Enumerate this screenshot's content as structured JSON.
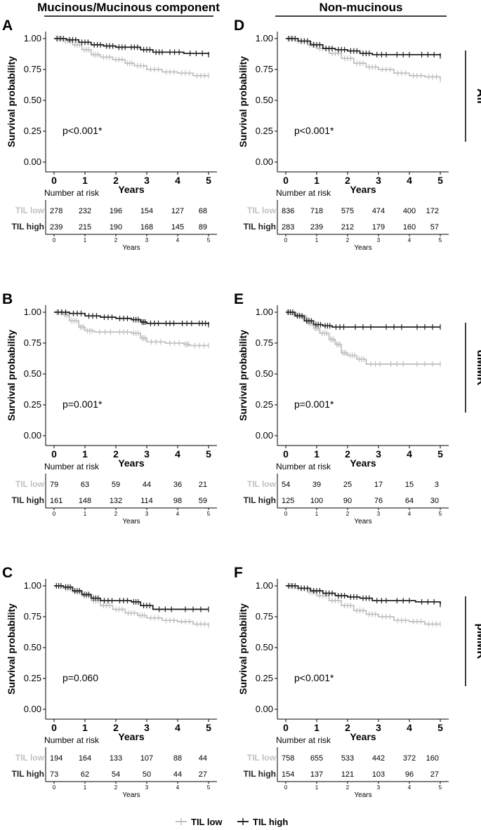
{
  "chart_data": {
    "type": "line",
    "subtype": "kaplan-meier",
    "column_titles": [
      "Mucinous/Mucinous component",
      "Non-mucinous"
    ],
    "row_labels": [
      "All",
      "dMMR",
      "pMMR"
    ],
    "series_names": [
      "TIL low",
      "TIL high"
    ],
    "series_colors": {
      "TIL low": "#c0c0c0",
      "TIL high": "#222222"
    },
    "ylabel": "Survival probability",
    "xlabel": "Years",
    "yticks": [
      "0.00",
      "0.25",
      "0.50",
      "0.75",
      "1.00"
    ],
    "xticks": [
      "0",
      "1",
      "2",
      "3",
      "4",
      "5"
    ],
    "xlim": [
      0,
      5
    ],
    "ylim": [
      0,
      1
    ],
    "risk_title": "Number at risk",
    "risk_xlabel": "Years",
    "legend": [
      "TIL low",
      "TIL high"
    ],
    "legend_position": "bottom",
    "panels": [
      {
        "label": "A",
        "pvalue": "p<0.001*",
        "risk": {
          "TIL low": [
            "278",
            "232",
            "196",
            "154",
            "127",
            "68"
          ],
          "TIL high": [
            "239",
            "215",
            "190",
            "168",
            "145",
            "89"
          ]
        },
        "curves": {
          "TIL low": [
            [
              0,
              1.0
            ],
            [
              0.3,
              0.98
            ],
            [
              0.6,
              0.95
            ],
            [
              0.9,
              0.91
            ],
            [
              1.2,
              0.87
            ],
            [
              1.5,
              0.85
            ],
            [
              1.9,
              0.83
            ],
            [
              2.3,
              0.8
            ],
            [
              2.6,
              0.78
            ],
            [
              3.0,
              0.75
            ],
            [
              3.5,
              0.73
            ],
            [
              4.0,
              0.72
            ],
            [
              4.5,
              0.7
            ],
            [
              5.0,
              0.7
            ]
          ],
          "TIL high": [
            [
              0,
              1.0
            ],
            [
              0.4,
              0.99
            ],
            [
              0.8,
              0.97
            ],
            [
              1.2,
              0.95
            ],
            [
              1.6,
              0.94
            ],
            [
              2.0,
              0.93
            ],
            [
              2.4,
              0.93
            ],
            [
              2.8,
              0.91
            ],
            [
              3.2,
              0.89
            ],
            [
              3.6,
              0.89
            ],
            [
              4.2,
              0.88
            ],
            [
              5.0,
              0.87
            ]
          ]
        }
      },
      {
        "label": "D",
        "pvalue": "p<0.001*",
        "risk": {
          "TIL low": [
            "836",
            "718",
            "575",
            "474",
            "400",
            "172"
          ],
          "TIL high": [
            "283",
            "239",
            "212",
            "179",
            "160",
            "57"
          ]
        },
        "curves": {
          "TIL low": [
            [
              0,
              1.0
            ],
            [
              0.3,
              0.98
            ],
            [
              0.7,
              0.95
            ],
            [
              1.0,
              0.92
            ],
            [
              1.4,
              0.88
            ],
            [
              1.8,
              0.84
            ],
            [
              2.2,
              0.8
            ],
            [
              2.6,
              0.77
            ],
            [
              3.0,
              0.75
            ],
            [
              3.5,
              0.72
            ],
            [
              4.0,
              0.7
            ],
            [
              4.5,
              0.69
            ],
            [
              5.0,
              0.67
            ]
          ],
          "TIL high": [
            [
              0,
              1.0
            ],
            [
              0.4,
              0.98
            ],
            [
              0.8,
              0.95
            ],
            [
              1.2,
              0.92
            ],
            [
              1.6,
              0.91
            ],
            [
              2.0,
              0.9
            ],
            [
              2.4,
              0.88
            ],
            [
              2.8,
              0.87
            ],
            [
              3.4,
              0.87
            ],
            [
              4.2,
              0.87
            ],
            [
              5.0,
              0.86
            ]
          ]
        }
      },
      {
        "label": "B",
        "pvalue": "p=0.001*",
        "risk": {
          "TIL low": [
            "79",
            "63",
            "59",
            "44",
            "36",
            "21"
          ],
          "TIL high": [
            "161",
            "148",
            "132",
            "114",
            "98",
            "59"
          ]
        },
        "curves": {
          "TIL low": [
            [
              0,
              1.0
            ],
            [
              0.3,
              0.98
            ],
            [
              0.5,
              0.93
            ],
            [
              0.8,
              0.88
            ],
            [
              1.0,
              0.85
            ],
            [
              1.3,
              0.84
            ],
            [
              2.0,
              0.84
            ],
            [
              2.5,
              0.83
            ],
            [
              2.8,
              0.79
            ],
            [
              3.0,
              0.76
            ],
            [
              3.6,
              0.75
            ],
            [
              4.2,
              0.74
            ],
            [
              4.4,
              0.73
            ],
            [
              5.0,
              0.73
            ]
          ],
          "TIL high": [
            [
              0,
              1.0
            ],
            [
              0.5,
              0.99
            ],
            [
              1.0,
              0.97
            ],
            [
              1.5,
              0.96
            ],
            [
              2.0,
              0.95
            ],
            [
              2.5,
              0.94
            ],
            [
              2.8,
              0.92
            ],
            [
              3.0,
              0.91
            ],
            [
              3.5,
              0.91
            ],
            [
              4.0,
              0.91
            ],
            [
              4.6,
              0.91
            ],
            [
              5.0,
              0.9
            ]
          ]
        }
      },
      {
        "label": "E",
        "pvalue": "p=0.001*",
        "risk": {
          "TIL low": [
            "54",
            "39",
            "25",
            "17",
            "15",
            "3"
          ],
          "TIL high": [
            "125",
            "100",
            "90",
            "76",
            "64",
            "30"
          ]
        },
        "curves": {
          "TIL low": [
            [
              0,
              1.0
            ],
            [
              0.2,
              0.98
            ],
            [
              0.5,
              0.96
            ],
            [
              0.7,
              0.91
            ],
            [
              0.9,
              0.87
            ],
            [
              1.1,
              0.83
            ],
            [
              1.4,
              0.78
            ],
            [
              1.6,
              0.74
            ],
            [
              1.8,
              0.67
            ],
            [
              2.0,
              0.65
            ],
            [
              2.3,
              0.62
            ],
            [
              2.6,
              0.58
            ],
            [
              3.2,
              0.58
            ],
            [
              4.0,
              0.58
            ],
            [
              5.0,
              0.58
            ]
          ],
          "TIL high": [
            [
              0,
              1.0
            ],
            [
              0.3,
              0.97
            ],
            [
              0.6,
              0.93
            ],
            [
              0.9,
              0.9
            ],
            [
              1.2,
              0.89
            ],
            [
              1.5,
              0.88
            ],
            [
              2.0,
              0.88
            ],
            [
              3.0,
              0.88
            ],
            [
              4.0,
              0.88
            ],
            [
              5.0,
              0.88
            ]
          ]
        }
      },
      {
        "label": "C",
        "pvalue": "p=0.060",
        "risk": {
          "TIL low": [
            "194",
            "164",
            "133",
            "107",
            "88",
            "44"
          ],
          "TIL high": [
            "73",
            "62",
            "54",
            "50",
            "44",
            "27"
          ]
        },
        "curves": {
          "TIL low": [
            [
              0,
              1.0
            ],
            [
              0.3,
              0.98
            ],
            [
              0.6,
              0.95
            ],
            [
              0.9,
              0.92
            ],
            [
              1.2,
              0.88
            ],
            [
              1.5,
              0.84
            ],
            [
              1.9,
              0.81
            ],
            [
              2.3,
              0.78
            ],
            [
              2.7,
              0.76
            ],
            [
              3.0,
              0.74
            ],
            [
              3.5,
              0.72
            ],
            [
              4.0,
              0.71
            ],
            [
              4.5,
              0.69
            ],
            [
              5.0,
              0.68
            ]
          ],
          "TIL high": [
            [
              0,
              1.0
            ],
            [
              0.3,
              0.99
            ],
            [
              0.6,
              0.96
            ],
            [
              0.9,
              0.93
            ],
            [
              1.2,
              0.9
            ],
            [
              1.5,
              0.88
            ],
            [
              2.0,
              0.88
            ],
            [
              2.5,
              0.87
            ],
            [
              2.8,
              0.84
            ],
            [
              3.2,
              0.81
            ],
            [
              4.0,
              0.81
            ],
            [
              5.0,
              0.81
            ]
          ]
        }
      },
      {
        "label": "F",
        "pvalue": "p<0.001*",
        "risk": {
          "TIL low": [
            "758",
            "655",
            "533",
            "442",
            "372",
            "160"
          ],
          "TIL high": [
            "154",
            "137",
            "121",
            "103",
            "96",
            "27"
          ]
        },
        "curves": {
          "TIL low": [
            [
              0,
              1.0
            ],
            [
              0.3,
              0.98
            ],
            [
              0.7,
              0.95
            ],
            [
              1.0,
              0.92
            ],
            [
              1.4,
              0.88
            ],
            [
              1.8,
              0.84
            ],
            [
              2.2,
              0.8
            ],
            [
              2.6,
              0.77
            ],
            [
              3.0,
              0.75
            ],
            [
              3.5,
              0.72
            ],
            [
              4.0,
              0.71
            ],
            [
              4.5,
              0.69
            ],
            [
              5.0,
              0.69
            ]
          ],
          "TIL high": [
            [
              0,
              1.0
            ],
            [
              0.4,
              0.98
            ],
            [
              0.8,
              0.96
            ],
            [
              1.2,
              0.94
            ],
            [
              1.6,
              0.92
            ],
            [
              2.0,
              0.91
            ],
            [
              2.4,
              0.9
            ],
            [
              2.8,
              0.88
            ],
            [
              3.4,
              0.88
            ],
            [
              4.2,
              0.87
            ],
            [
              5.0,
              0.85
            ]
          ]
        }
      }
    ]
  }
}
